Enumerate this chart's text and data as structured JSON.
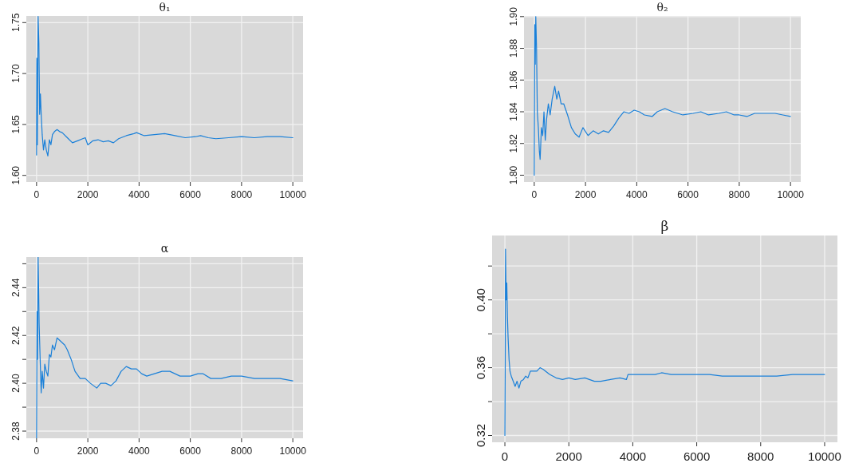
{
  "chart_data": [
    {
      "type": "line",
      "title": "θ₁",
      "xlim": [
        -400,
        10400
      ],
      "xticks": [
        0,
        2000,
        4000,
        6000,
        8000,
        10000
      ],
      "ylim": [
        1.5935,
        1.7565
      ],
      "yticks": [
        {
          "value": 1.6,
          "label": "1.60"
        },
        1.65,
        {
          "value": 1.7,
          "label": "1.70"
        },
        1.75
      ],
      "grid": true,
      "series": [
        {
          "color": "#1a80d9",
          "x": [
            0,
            10,
            30,
            60,
            90,
            120,
            150,
            180,
            220,
            270,
            320,
            380,
            440,
            500,
            560,
            620,
            700,
            800,
            900,
            1000,
            1200,
            1400,
            1600,
            1800,
            1900,
            2000,
            2200,
            2400,
            2600,
            2800,
            3000,
            3200,
            3500,
            3800,
            3900,
            4200,
            4600,
            5000,
            5400,
            5800,
            6200,
            6400,
            6700,
            7000,
            7500,
            8000,
            8500,
            9000,
            9500,
            10000
          ],
          "values": [
            1.62,
            1.715,
            1.63,
            1.756,
            1.73,
            1.66,
            1.68,
            1.66,
            1.64,
            1.625,
            1.635,
            1.625,
            1.619,
            1.635,
            1.63,
            1.64,
            1.643,
            1.645,
            1.643,
            1.642,
            1.637,
            1.632,
            1.634,
            1.636,
            1.637,
            1.63,
            1.634,
            1.635,
            1.633,
            1.634,
            1.632,
            1.636,
            1.639,
            1.641,
            1.642,
            1.639,
            1.64,
            1.641,
            1.639,
            1.637,
            1.638,
            1.639,
            1.637,
            1.636,
            1.637,
            1.638,
            1.637,
            1.638,
            1.638,
            1.637
          ]
        }
      ]
    },
    {
      "type": "line",
      "title": "θ₂",
      "xlim": [
        -400,
        10400
      ],
      "xticks": [
        0,
        2000,
        4000,
        6000,
        8000,
        10000
      ],
      "ylim": [
        1.7957,
        1.9004
      ],
      "yticks": [
        {
          "value": 1.8,
          "label": "1.80"
        },
        1.82,
        1.84,
        1.86,
        1.88,
        {
          "value": 1.9,
          "label": "1.90"
        }
      ],
      "grid": true,
      "series": [
        {
          "color": "#1a80d9",
          "x": [
            0,
            20,
            40,
            60,
            90,
            120,
            160,
            200,
            230,
            280,
            330,
            380,
            430,
            480,
            550,
            620,
            700,
            800,
            880,
            950,
            1050,
            1150,
            1300,
            1450,
            1600,
            1750,
            1900,
            2100,
            2300,
            2500,
            2700,
            2900,
            3100,
            3300,
            3500,
            3700,
            3900,
            4100,
            4300,
            4600,
            4800,
            5100,
            5400,
            5800,
            6200,
            6500,
            6800,
            7200,
            7500,
            7800,
            8000,
            8300,
            8600,
            9000,
            9400,
            9700,
            10000
          ],
          "values": [
            1.8,
            1.895,
            1.87,
            1.9,
            1.88,
            1.84,
            1.83,
            1.815,
            1.81,
            1.83,
            1.825,
            1.84,
            1.822,
            1.835,
            1.845,
            1.838,
            1.848,
            1.856,
            1.848,
            1.853,
            1.845,
            1.845,
            1.838,
            1.83,
            1.826,
            1.824,
            1.83,
            1.825,
            1.828,
            1.826,
            1.828,
            1.827,
            1.831,
            1.836,
            1.84,
            1.839,
            1.841,
            1.84,
            1.838,
            1.837,
            1.84,
            1.842,
            1.84,
            1.838,
            1.839,
            1.84,
            1.838,
            1.839,
            1.84,
            1.838,
            1.838,
            1.837,
            1.839,
            1.839,
            1.839,
            1.838,
            1.837
          ]
        }
      ]
    },
    {
      "type": "line",
      "title": "α",
      "xlim": [
        -400,
        10400
      ],
      "xticks": [
        0,
        2000,
        4000,
        6000,
        8000,
        10000
      ],
      "ylim": [
        2.377,
        2.4528
      ],
      "yticks": [
        2.38,
        {
          "value": 2.39,
          "label": null
        },
        {
          "value": 2.4,
          "label": "2.40"
        },
        {
          "value": 2.41,
          "label": null
        },
        2.42,
        {
          "value": 2.43,
          "label": null
        },
        2.44,
        {
          "value": 2.45,
          "label": null
        }
      ],
      "grid": true,
      "series": [
        {
          "color": "#1a80d9",
          "x": [
            0,
            20,
            40,
            60,
            80,
            100,
            140,
            180,
            220,
            270,
            320,
            380,
            440,
            500,
            560,
            620,
            700,
            800,
            900,
            1000,
            1100,
            1200,
            1350,
            1500,
            1700,
            1900,
            2100,
            2350,
            2500,
            2700,
            2900,
            3100,
            3300,
            3500,
            3700,
            3900,
            4100,
            4300,
            4600,
            4900,
            5200,
            5600,
            6000,
            6300,
            6500,
            6800,
            7200,
            7600,
            8000,
            8500,
            9000,
            9500,
            10000
          ],
          "values": [
            2.377,
            2.43,
            2.41,
            2.4528,
            2.44,
            2.425,
            2.41,
            2.396,
            2.405,
            2.398,
            2.408,
            2.405,
            2.403,
            2.412,
            2.411,
            2.416,
            2.414,
            2.419,
            2.418,
            2.417,
            2.416,
            2.414,
            2.41,
            2.405,
            2.402,
            2.402,
            2.4,
            2.398,
            2.4,
            2.4,
            2.399,
            2.401,
            2.405,
            2.407,
            2.406,
            2.406,
            2.404,
            2.403,
            2.404,
            2.405,
            2.405,
            2.403,
            2.403,
            2.404,
            2.404,
            2.402,
            2.402,
            2.403,
            2.403,
            2.402,
            2.402,
            2.402,
            2.401
          ]
        }
      ]
    },
    {
      "type": "line",
      "title": "β",
      "xlim": [
        -400,
        10400
      ],
      "xticks": [
        0,
        2000,
        4000,
        6000,
        8000,
        10000
      ],
      "ylim": [
        0.316,
        0.438
      ],
      "yticks": [
        0.32,
        {
          "value": 0.34,
          "label": null
        },
        0.36,
        {
          "value": 0.38,
          "label": null
        },
        {
          "value": 0.4,
          "label": "0.40"
        },
        {
          "value": 0.42,
          "label": null
        }
      ],
      "grid": true,
      "series": [
        {
          "color": "#1a80d9",
          "x": [
            0,
            10,
            20,
            40,
            60,
            80,
            100,
            130,
            160,
            200,
            260,
            320,
            380,
            440,
            500,
            580,
            650,
            720,
            800,
            900,
            1000,
            1100,
            1200,
            1400,
            1600,
            1800,
            2000,
            2200,
            2500,
            2800,
            3000,
            3300,
            3600,
            3800,
            3850,
            4000,
            4300,
            4700,
            4900,
            5200,
            5600,
            6000,
            6400,
            6800,
            7200,
            7600,
            8000,
            8500,
            9000,
            9500,
            10000
          ],
          "values": [
            0.32,
            0.36,
            0.43,
            0.4,
            0.41,
            0.39,
            0.378,
            0.365,
            0.358,
            0.355,
            0.352,
            0.349,
            0.352,
            0.348,
            0.352,
            0.353,
            0.355,
            0.354,
            0.358,
            0.358,
            0.358,
            0.36,
            0.359,
            0.356,
            0.354,
            0.353,
            0.354,
            0.353,
            0.354,
            0.352,
            0.352,
            0.353,
            0.354,
            0.353,
            0.356,
            0.356,
            0.356,
            0.356,
            0.357,
            0.356,
            0.356,
            0.356,
            0.356,
            0.355,
            0.355,
            0.355,
            0.355,
            0.355,
            0.356,
            0.356,
            0.356
          ]
        }
      ]
    }
  ]
}
